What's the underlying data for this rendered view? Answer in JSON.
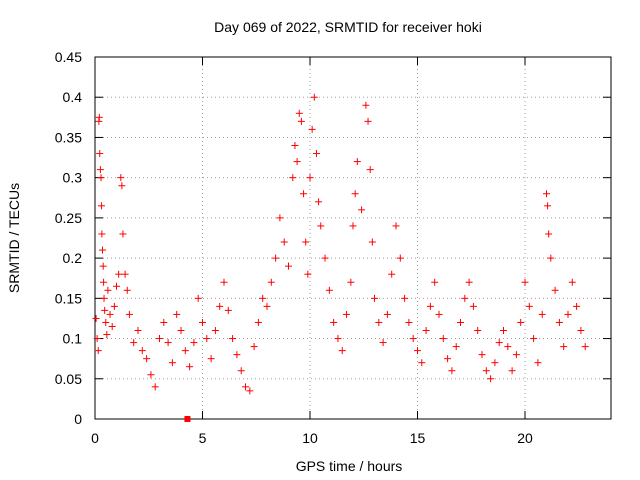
{
  "chart_data": {
    "type": "scatter",
    "title": "Day 069 of 2022, SRMTID for receiver hoki",
    "xlabel": "GPS time / hours",
    "ylabel": "SRMTID / TECUs",
    "xlim": [
      0,
      24
    ],
    "ylim": [
      0,
      0.45
    ],
    "x_ticks": [
      0,
      5,
      10,
      15,
      20
    ],
    "y_ticks": [
      0,
      0.05,
      0.1,
      0.15,
      0.2,
      0.25,
      0.3,
      0.35,
      0.4,
      0.45
    ],
    "x_tick_labels": [
      "0",
      "5",
      "10",
      "15",
      "20"
    ],
    "y_tick_labels": [
      "0",
      "0.05",
      "0.1",
      "0.15",
      "0.2",
      "0.25",
      "0.3",
      "0.35",
      "0.4",
      "0.45"
    ],
    "grid": true,
    "marker": "+",
    "marker_color": "#ff0000",
    "series": [
      {
        "name": "SRMTID",
        "points": [
          [
            0.05,
            0.125
          ],
          [
            0.1,
            0.1
          ],
          [
            0.15,
            0.085
          ],
          [
            0.18,
            0.37
          ],
          [
            0.2,
            0.375
          ],
          [
            0.22,
            0.33
          ],
          [
            0.25,
            0.31
          ],
          [
            0.28,
            0.3
          ],
          [
            0.3,
            0.265
          ],
          [
            0.32,
            0.23
          ],
          [
            0.35,
            0.21
          ],
          [
            0.38,
            0.19
          ],
          [
            0.4,
            0.17
          ],
          [
            0.42,
            0.15
          ],
          [
            0.45,
            0.135
          ],
          [
            0.5,
            0.12
          ],
          [
            0.55,
            0.105
          ],
          [
            0.6,
            0.16
          ],
          [
            0.7,
            0.13
          ],
          [
            0.8,
            0.115
          ],
          [
            0.9,
            0.14
          ],
          [
            1.0,
            0.165
          ],
          [
            1.1,
            0.18
          ],
          [
            1.2,
            0.3
          ],
          [
            1.25,
            0.29
          ],
          [
            1.3,
            0.23
          ],
          [
            1.4,
            0.18
          ],
          [
            1.5,
            0.16
          ],
          [
            1.6,
            0.13
          ],
          [
            1.8,
            0.095
          ],
          [
            2.0,
            0.11
          ],
          [
            2.2,
            0.085
          ],
          [
            2.4,
            0.075
          ],
          [
            2.6,
            0.055
          ],
          [
            2.8,
            0.04
          ],
          [
            3.0,
            0.1
          ],
          [
            3.2,
            0.12
          ],
          [
            3.4,
            0.095
          ],
          [
            3.6,
            0.07
          ],
          [
            3.8,
            0.13
          ],
          [
            4.0,
            0.11
          ],
          [
            4.2,
            0.085
          ],
          [
            4.4,
            0.065
          ],
          [
            4.6,
            0.095
          ],
          [
            4.8,
            0.15
          ],
          [
            5.0,
            0.12
          ],
          [
            5.2,
            0.1
          ],
          [
            5.4,
            0.075
          ],
          [
            5.6,
            0.11
          ],
          [
            5.8,
            0.14
          ],
          [
            6.0,
            0.17
          ],
          [
            6.2,
            0.135
          ],
          [
            6.4,
            0.1
          ],
          [
            6.6,
            0.08
          ],
          [
            6.8,
            0.06
          ],
          [
            7.0,
            0.04
          ],
          [
            7.2,
            0.035
          ],
          [
            7.4,
            0.09
          ],
          [
            7.6,
            0.12
          ],
          [
            7.8,
            0.15
          ],
          [
            8.0,
            0.14
          ],
          [
            8.2,
            0.17
          ],
          [
            8.4,
            0.2
          ],
          [
            8.6,
            0.25
          ],
          [
            8.8,
            0.22
          ],
          [
            9.0,
            0.19
          ],
          [
            9.2,
            0.3
          ],
          [
            9.3,
            0.34
          ],
          [
            9.4,
            0.32
          ],
          [
            9.5,
            0.38
          ],
          [
            9.6,
            0.37
          ],
          [
            9.7,
            0.28
          ],
          [
            9.8,
            0.22
          ],
          [
            9.9,
            0.18
          ],
          [
            10.0,
            0.3
          ],
          [
            10.1,
            0.36
          ],
          [
            10.2,
            0.4
          ],
          [
            10.3,
            0.33
          ],
          [
            10.4,
            0.27
          ],
          [
            10.5,
            0.24
          ],
          [
            10.7,
            0.2
          ],
          [
            10.9,
            0.16
          ],
          [
            11.1,
            0.12
          ],
          [
            11.3,
            0.1
          ],
          [
            11.5,
            0.085
          ],
          [
            11.7,
            0.13
          ],
          [
            11.9,
            0.17
          ],
          [
            12.0,
            0.24
          ],
          [
            12.1,
            0.28
          ],
          [
            12.2,
            0.32
          ],
          [
            12.4,
            0.26
          ],
          [
            12.6,
            0.39
          ],
          [
            12.7,
            0.37
          ],
          [
            12.8,
            0.31
          ],
          [
            12.9,
            0.22
          ],
          [
            13.0,
            0.15
          ],
          [
            13.2,
            0.12
          ],
          [
            13.4,
            0.095
          ],
          [
            13.6,
            0.13
          ],
          [
            13.8,
            0.18
          ],
          [
            14.0,
            0.24
          ],
          [
            14.2,
            0.2
          ],
          [
            14.4,
            0.15
          ],
          [
            14.6,
            0.12
          ],
          [
            14.8,
            0.1
          ],
          [
            15.0,
            0.085
          ],
          [
            15.2,
            0.07
          ],
          [
            15.4,
            0.11
          ],
          [
            15.6,
            0.14
          ],
          [
            15.8,
            0.17
          ],
          [
            16.0,
            0.13
          ],
          [
            16.2,
            0.1
          ],
          [
            16.4,
            0.075
          ],
          [
            16.6,
            0.06
          ],
          [
            16.8,
            0.09
          ],
          [
            17.0,
            0.12
          ],
          [
            17.2,
            0.15
          ],
          [
            17.4,
            0.17
          ],
          [
            17.6,
            0.14
          ],
          [
            17.8,
            0.11
          ],
          [
            18.0,
            0.08
          ],
          [
            18.2,
            0.06
          ],
          [
            18.4,
            0.05
          ],
          [
            18.6,
            0.07
          ],
          [
            18.8,
            0.095
          ],
          [
            19.0,
            0.11
          ],
          [
            19.2,
            0.09
          ],
          [
            19.4,
            0.06
          ],
          [
            19.6,
            0.08
          ],
          [
            19.8,
            0.12
          ],
          [
            20.0,
            0.17
          ],
          [
            20.2,
            0.14
          ],
          [
            20.4,
            0.1
          ],
          [
            20.6,
            0.07
          ],
          [
            20.8,
            0.13
          ],
          [
            21.0,
            0.28
          ],
          [
            21.05,
            0.265
          ],
          [
            21.1,
            0.23
          ],
          [
            21.2,
            0.2
          ],
          [
            21.4,
            0.16
          ],
          [
            21.6,
            0.12
          ],
          [
            21.8,
            0.09
          ],
          [
            22.0,
            0.13
          ],
          [
            22.2,
            0.17
          ],
          [
            22.4,
            0.14
          ],
          [
            22.6,
            0.11
          ],
          [
            22.8,
            0.09
          ]
        ]
      }
    ],
    "annotations": [
      {
        "label": "data gap marker",
        "x": 4.3,
        "y": 0.0
      }
    ]
  }
}
